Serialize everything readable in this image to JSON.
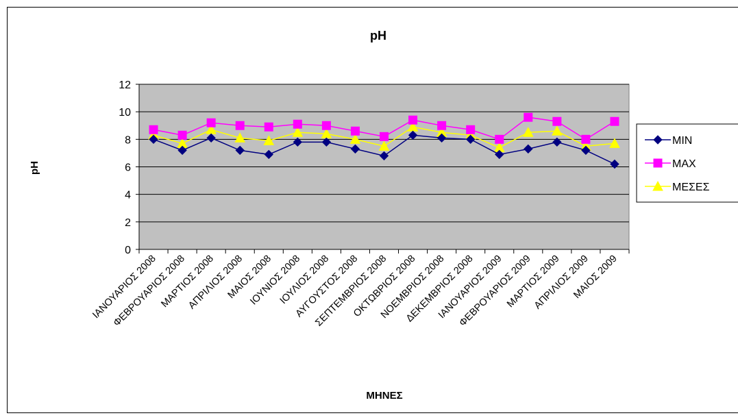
{
  "chart_data": {
    "type": "line",
    "title": "pH",
    "xlabel": "ΜΗΝΕΣ",
    "ylabel": "pH",
    "ylim": [
      0,
      12
    ],
    "yticks": [
      0,
      2,
      4,
      6,
      8,
      10,
      12
    ],
    "grid": true,
    "legend_position": "right",
    "plot_background": "#c0c0c0",
    "categories": [
      "ΙΑΝΟΥΑΡΙΟΣ 2008",
      "ΦΕΒΡΟΥΑΡΙΟΣ 2008",
      "ΜΑΡΤΙΟΣ 2008",
      "ΑΠΡΙΛΙΟΣ 2008",
      "ΜΑΙΟΣ 2008",
      "ΙΟΥΝΙΟΣ 2008",
      "ΙΟΥΛΙΟΣ 2008",
      "ΑΥΓΟΥΣΤΟΣ 2008",
      "ΣΕΠΤΕΜΒΡΙΟΣ 2008",
      "ΟΚΤΩΒΡΙΟΣ 2008",
      "ΝΟΕΜΒΡΙΟΣ 2008",
      "ΔΕΚΕΜΒΡΙΟΣ 2008",
      "ΙΑΝΟΥΑΡΙΟΣ 2009",
      "ΦΕΒΡΟΥΑΡΙΟΣ 2009",
      "ΜΑΡΤΙΟΣ 2009",
      "ΑΠΡΙΛΙΟΣ 2009",
      "ΜΑΙΟΣ 2009"
    ],
    "series": [
      {
        "name": "MIN",
        "color": "#000080",
        "marker": "diamond",
        "values": [
          8.0,
          7.2,
          8.1,
          7.2,
          6.9,
          7.8,
          7.8,
          7.3,
          6.8,
          8.3,
          8.1,
          8.0,
          6.9,
          7.3,
          7.8,
          7.2,
          6.2
        ]
      },
      {
        "name": "MAX",
        "color": "#ff00ff",
        "marker": "square",
        "values": [
          8.7,
          8.3,
          9.2,
          9.0,
          8.9,
          9.1,
          9.0,
          8.6,
          8.2,
          9.4,
          9.0,
          8.7,
          8.0,
          9.6,
          9.3,
          8.0,
          9.3
        ]
      },
      {
        "name": "ΜΕΣΕΣ",
        "color": "#ffff00",
        "marker": "triangle",
        "values": [
          8.3,
          7.7,
          8.7,
          8.1,
          7.9,
          8.5,
          8.4,
          8.0,
          7.5,
          8.9,
          8.5,
          8.3,
          7.4,
          8.5,
          8.6,
          7.5,
          7.7
        ]
      }
    ]
  }
}
